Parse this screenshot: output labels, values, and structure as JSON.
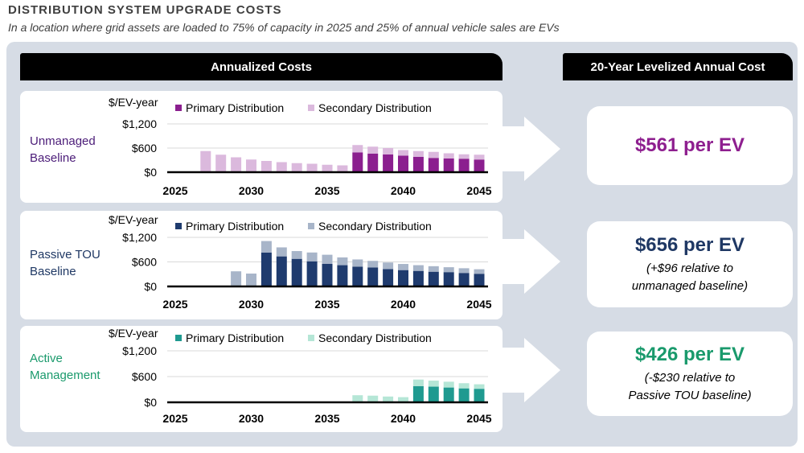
{
  "title": "DISTRIBUTION SYSTEM UPGRADE COSTS",
  "subtitle": "In a location where grid assets are loaded to 75% of capacity in 2025 and 25% of annual vehicle sales are EVs",
  "headers": {
    "left": "Annualized Costs",
    "right": "20-Year Levelized Annual Cost"
  },
  "rows": [
    {
      "label_line1": "Unmanaged",
      "label_line2": "Baseline",
      "label_color": "#4b1c78",
      "result": "$561 per EV",
      "result_color": "#8e1f8f",
      "note_line1": "",
      "note_line2": ""
    },
    {
      "label_line1": "Passive TOU",
      "label_line2": "Baseline",
      "label_color": "#1f3864",
      "result": "$656 per EV",
      "result_color": "#1f3864",
      "note_line1": "(+$96 relative to",
      "note_line2": "unmanaged baseline)"
    },
    {
      "label_line1": "Active",
      "label_line2": "Management",
      "label_color": "#1a9a6c",
      "result": "$426 per EV",
      "result_color": "#1a9a6c",
      "note_line1": "(-$230 relative to",
      "note_line2": "Passive TOU baseline)"
    }
  ],
  "chart_data": [
    {
      "type": "bar",
      "stacked": true,
      "ylabel": "$/EV-year",
      "ylim": [
        0,
        1200
      ],
      "yticks": [
        "$0",
        "$600",
        "$1,200"
      ],
      "ytick_values": [
        0,
        600,
        1200
      ],
      "xticks": [
        "2025",
        "2030",
        "2035",
        "2040",
        "2045"
      ],
      "grid": true,
      "legend_position": "top",
      "categories": [
        2025,
        2026,
        2027,
        2028,
        2029,
        2030,
        2031,
        2032,
        2033,
        2034,
        2035,
        2036,
        2037,
        2038,
        2039,
        2040,
        2041,
        2042,
        2043,
        2044,
        2045
      ],
      "series": [
        {
          "name": "Primary Distribution",
          "color": "#8b1f8f",
          "values": [
            0,
            0,
            0,
            0,
            0,
            0,
            0,
            0,
            0,
            0,
            0,
            0,
            490,
            460,
            440,
            410,
            380,
            355,
            340,
            335,
            315
          ]
        },
        {
          "name": "Secondary Distribution",
          "color": "#dbb9dd",
          "values": [
            0,
            0,
            525,
            435,
            370,
            315,
            280,
            250,
            225,
            210,
            185,
            170,
            185,
            175,
            160,
            140,
            145,
            150,
            130,
            110,
            120
          ]
        }
      ]
    },
    {
      "type": "bar",
      "stacked": true,
      "ylabel": "$/EV-year",
      "ylim": [
        0,
        1200
      ],
      "yticks": [
        "$0",
        "$600",
        "$1,200"
      ],
      "ytick_values": [
        0,
        600,
        1200
      ],
      "xticks": [
        "2025",
        "2030",
        "2035",
        "2040",
        "2045"
      ],
      "grid": true,
      "legend_position": "top",
      "categories": [
        2025,
        2026,
        2027,
        2028,
        2029,
        2030,
        2031,
        2032,
        2033,
        2034,
        2035,
        2036,
        2037,
        2038,
        2039,
        2040,
        2041,
        2042,
        2043,
        2044,
        2045
      ],
      "series": [
        {
          "name": "Primary Distribution",
          "color": "#1f3b6e",
          "values": [
            0,
            0,
            0,
            0,
            0,
            0,
            830,
            735,
            675,
            615,
            555,
            520,
            485,
            465,
            425,
            400,
            380,
            360,
            350,
            330,
            310
          ]
        },
        {
          "name": "Secondary Distribution",
          "color": "#a8b5c9",
          "values": [
            0,
            0,
            0,
            0,
            370,
            315,
            280,
            220,
            190,
            215,
            220,
            190,
            175,
            160,
            160,
            150,
            140,
            135,
            120,
            115,
            110
          ]
        }
      ]
    },
    {
      "type": "bar",
      "stacked": true,
      "ylabel": "$/EV-year",
      "ylim": [
        0,
        1200
      ],
      "yticks": [
        "$0",
        "$600",
        "$1,200"
      ],
      "ytick_values": [
        0,
        600,
        1200
      ],
      "xticks": [
        "2025",
        "2030",
        "2035",
        "2040",
        "2045"
      ],
      "grid": true,
      "legend_position": "top",
      "categories": [
        2025,
        2026,
        2027,
        2028,
        2029,
        2030,
        2031,
        2032,
        2033,
        2034,
        2035,
        2036,
        2037,
        2038,
        2039,
        2040,
        2041,
        2042,
        2043,
        2044,
        2045
      ],
      "series": [
        {
          "name": "Primary Distribution",
          "color": "#1f9a90",
          "values": [
            0,
            0,
            0,
            0,
            0,
            0,
            0,
            0,
            0,
            0,
            0,
            0,
            0,
            0,
            0,
            0,
            375,
            365,
            345,
            325,
            315
          ]
        },
        {
          "name": "Secondary Distribution",
          "color": "#b5e6d6",
          "values": [
            0,
            0,
            0,
            0,
            0,
            0,
            0,
            0,
            0,
            0,
            0,
            0,
            165,
            155,
            135,
            120,
            155,
            140,
            135,
            120,
            105
          ]
        }
      ]
    }
  ]
}
